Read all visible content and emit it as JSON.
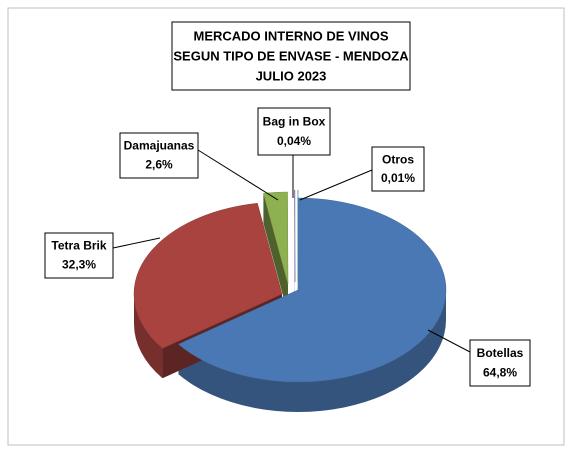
{
  "chart_data": {
    "type": "pie",
    "title": [
      "MERCADO INTERNO DE VINOS",
      "SEGUN TIPO DE ENVASE - MENDOZA",
      "JULIO 2023"
    ],
    "categories": [
      "Botellas",
      "Tetra Brik",
      "Damajuanas",
      "Bag in Box",
      "Otros"
    ],
    "values": [
      64.8,
      32.3,
      2.6,
      0.04,
      0.01
    ],
    "value_labels": [
      "64,8%",
      "32,3%",
      "2,6%",
      "0,04%",
      "0,01%"
    ],
    "colors": [
      "#4a78b4",
      "#a8433f",
      "#8db050",
      "#7a5aa0",
      "#3fa0b8"
    ]
  }
}
